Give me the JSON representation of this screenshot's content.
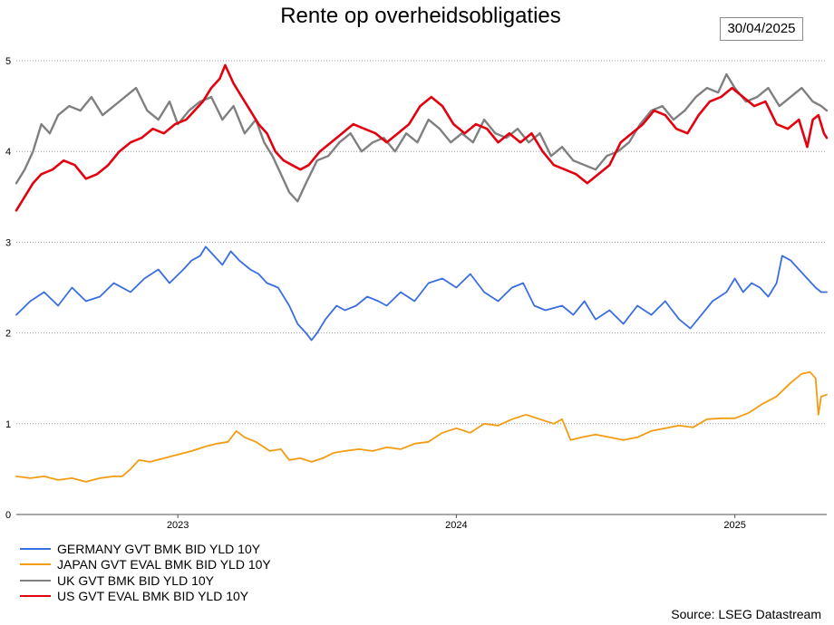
{
  "chart_data": {
    "type": "line",
    "title": "Rente op overheidsobligaties",
    "date_label": "30/04/2025",
    "source": "Source: LSEG Datastream",
    "xlabel": "",
    "ylabel": "",
    "xlim": [
      2022.42,
      2025.33
    ],
    "ylim": [
      0,
      5
    ],
    "yticks": [
      "0",
      "1",
      "2",
      "3",
      "4",
      "5"
    ],
    "xticks": [
      {
        "label": "2023",
        "value": 2023.0
      },
      {
        "label": "2024",
        "value": 2024.0
      },
      {
        "label": "2025",
        "value": 2025.0
      }
    ],
    "grid": "horizontal dotted",
    "legend_position": "bottom-left",
    "series": [
      {
        "name": "GERMANY GVT BMK BID YLD 10Y",
        "color": "#3a6ee0",
        "points": [
          [
            2022.42,
            2.2
          ],
          [
            2022.47,
            2.35
          ],
          [
            2022.52,
            2.45
          ],
          [
            2022.57,
            2.3
          ],
          [
            2022.62,
            2.5
          ],
          [
            2022.67,
            2.35
          ],
          [
            2022.72,
            2.4
          ],
          [
            2022.77,
            2.55
          ],
          [
            2022.83,
            2.45
          ],
          [
            2022.88,
            2.6
          ],
          [
            2022.93,
            2.7
          ],
          [
            2022.97,
            2.55
          ],
          [
            2023.02,
            2.7
          ],
          [
            2023.05,
            2.8
          ],
          [
            2023.08,
            2.85
          ],
          [
            2023.1,
            2.95
          ],
          [
            2023.13,
            2.85
          ],
          [
            2023.16,
            2.75
          ],
          [
            2023.19,
            2.9
          ],
          [
            2023.22,
            2.8
          ],
          [
            2023.26,
            2.7
          ],
          [
            2023.29,
            2.65
          ],
          [
            2023.32,
            2.55
          ],
          [
            2023.36,
            2.5
          ],
          [
            2023.4,
            2.3
          ],
          [
            2023.43,
            2.1
          ],
          [
            2023.46,
            2.0
          ],
          [
            2023.48,
            1.92
          ],
          [
            2023.5,
            2.0
          ],
          [
            2023.53,
            2.15
          ],
          [
            2023.57,
            2.3
          ],
          [
            2023.6,
            2.25
          ],
          [
            2023.64,
            2.3
          ],
          [
            2023.68,
            2.4
          ],
          [
            2023.72,
            2.35
          ],
          [
            2023.75,
            2.3
          ],
          [
            2023.8,
            2.45
          ],
          [
            2023.85,
            2.35
          ],
          [
            2023.9,
            2.55
          ],
          [
            2023.95,
            2.6
          ],
          [
            2024.0,
            2.5
          ],
          [
            2024.05,
            2.65
          ],
          [
            2024.1,
            2.45
          ],
          [
            2024.15,
            2.35
          ],
          [
            2024.2,
            2.5
          ],
          [
            2024.24,
            2.55
          ],
          [
            2024.28,
            2.3
          ],
          [
            2024.32,
            2.25
          ],
          [
            2024.38,
            2.3
          ],
          [
            2024.42,
            2.2
          ],
          [
            2024.46,
            2.35
          ],
          [
            2024.5,
            2.15
          ],
          [
            2024.55,
            2.25
          ],
          [
            2024.6,
            2.1
          ],
          [
            2024.65,
            2.3
          ],
          [
            2024.7,
            2.2
          ],
          [
            2024.75,
            2.35
          ],
          [
            2024.8,
            2.15
          ],
          [
            2024.84,
            2.05
          ],
          [
            2024.88,
            2.2
          ],
          [
            2024.92,
            2.35
          ],
          [
            2024.97,
            2.45
          ],
          [
            2025.0,
            2.6
          ],
          [
            2025.03,
            2.45
          ],
          [
            2025.06,
            2.55
          ],
          [
            2025.09,
            2.5
          ],
          [
            2025.12,
            2.4
          ],
          [
            2025.15,
            2.55
          ],
          [
            2025.17,
            2.85
          ],
          [
            2025.2,
            2.8
          ],
          [
            2025.23,
            2.7
          ],
          [
            2025.26,
            2.6
          ],
          [
            2025.29,
            2.5
          ],
          [
            2025.31,
            2.45
          ],
          [
            2025.33,
            2.45
          ]
        ]
      },
      {
        "name": "JAPAN GVT EVAL BMK BID YLD 10Y",
        "color": "#f39c12",
        "points": [
          [
            2022.42,
            0.42
          ],
          [
            2022.47,
            0.4
          ],
          [
            2022.52,
            0.42
          ],
          [
            2022.57,
            0.38
          ],
          [
            2022.62,
            0.4
          ],
          [
            2022.67,
            0.36
          ],
          [
            2022.72,
            0.4
          ],
          [
            2022.77,
            0.42
          ],
          [
            2022.8,
            0.42
          ],
          [
            2022.83,
            0.5
          ],
          [
            2022.86,
            0.6
          ],
          [
            2022.9,
            0.58
          ],
          [
            2022.95,
            0.62
          ],
          [
            2023.0,
            0.66
          ],
          [
            2023.05,
            0.7
          ],
          [
            2023.1,
            0.75
          ],
          [
            2023.14,
            0.78
          ],
          [
            2023.18,
            0.8
          ],
          [
            2023.21,
            0.92
          ],
          [
            2023.24,
            0.85
          ],
          [
            2023.28,
            0.8
          ],
          [
            2023.33,
            0.7
          ],
          [
            2023.37,
            0.72
          ],
          [
            2023.4,
            0.6
          ],
          [
            2023.44,
            0.62
          ],
          [
            2023.48,
            0.58
          ],
          [
            2023.52,
            0.62
          ],
          [
            2023.56,
            0.68
          ],
          [
            2023.6,
            0.7
          ],
          [
            2023.65,
            0.72
          ],
          [
            2023.7,
            0.7
          ],
          [
            2023.75,
            0.74
          ],
          [
            2023.8,
            0.72
          ],
          [
            2023.85,
            0.78
          ],
          [
            2023.9,
            0.8
          ],
          [
            2023.95,
            0.9
          ],
          [
            2024.0,
            0.95
          ],
          [
            2024.05,
            0.9
          ],
          [
            2024.1,
            1.0
          ],
          [
            2024.15,
            0.98
          ],
          [
            2024.2,
            1.05
          ],
          [
            2024.25,
            1.1
          ],
          [
            2024.3,
            1.05
          ],
          [
            2024.35,
            1.0
          ],
          [
            2024.38,
            1.05
          ],
          [
            2024.41,
            0.82
          ],
          [
            2024.45,
            0.85
          ],
          [
            2024.5,
            0.88
          ],
          [
            2024.55,
            0.85
          ],
          [
            2024.6,
            0.82
          ],
          [
            2024.65,
            0.85
          ],
          [
            2024.7,
            0.92
          ],
          [
            2024.75,
            0.95
          ],
          [
            2024.8,
            0.98
          ],
          [
            2024.85,
            0.96
          ],
          [
            2024.9,
            1.05
          ],
          [
            2024.95,
            1.06
          ],
          [
            2025.0,
            1.06
          ],
          [
            2025.05,
            1.12
          ],
          [
            2025.1,
            1.22
          ],
          [
            2025.15,
            1.3
          ],
          [
            2025.2,
            1.45
          ],
          [
            2025.24,
            1.55
          ],
          [
            2025.27,
            1.57
          ],
          [
            2025.29,
            1.5
          ],
          [
            2025.3,
            1.1
          ],
          [
            2025.31,
            1.3
          ],
          [
            2025.33,
            1.32
          ]
        ]
      },
      {
        "name": "UK GVT BMK BID YLD 10Y",
        "color": "#808080",
        "points": [
          [
            2022.42,
            3.65
          ],
          [
            2022.45,
            3.8
          ],
          [
            2022.48,
            4.0
          ],
          [
            2022.51,
            4.3
          ],
          [
            2022.54,
            4.2
          ],
          [
            2022.57,
            4.4
          ],
          [
            2022.61,
            4.5
          ],
          [
            2022.65,
            4.45
          ],
          [
            2022.69,
            4.6
          ],
          [
            2022.73,
            4.4
          ],
          [
            2022.77,
            4.5
          ],
          [
            2022.81,
            4.6
          ],
          [
            2022.85,
            4.7
          ],
          [
            2022.89,
            4.45
          ],
          [
            2022.93,
            4.35
          ],
          [
            2022.97,
            4.55
          ],
          [
            2023.0,
            4.3
          ],
          [
            2023.04,
            4.45
          ],
          [
            2023.08,
            4.55
          ],
          [
            2023.12,
            4.6
          ],
          [
            2023.16,
            4.35
          ],
          [
            2023.2,
            4.5
          ],
          [
            2023.24,
            4.2
          ],
          [
            2023.28,
            4.35
          ],
          [
            2023.31,
            4.1
          ],
          [
            2023.34,
            3.95
          ],
          [
            2023.37,
            3.75
          ],
          [
            2023.4,
            3.55
          ],
          [
            2023.43,
            3.45
          ],
          [
            2023.46,
            3.65
          ],
          [
            2023.5,
            3.9
          ],
          [
            2023.54,
            3.95
          ],
          [
            2023.58,
            4.1
          ],
          [
            2023.62,
            4.2
          ],
          [
            2023.66,
            4.0
          ],
          [
            2023.7,
            4.1
          ],
          [
            2023.74,
            4.15
          ],
          [
            2023.78,
            4.0
          ],
          [
            2023.82,
            4.2
          ],
          [
            2023.86,
            4.1
          ],
          [
            2023.9,
            4.35
          ],
          [
            2023.94,
            4.25
          ],
          [
            2023.98,
            4.1
          ],
          [
            2024.02,
            4.2
          ],
          [
            2024.06,
            4.1
          ],
          [
            2024.1,
            4.35
          ],
          [
            2024.14,
            4.2
          ],
          [
            2024.18,
            4.15
          ],
          [
            2024.22,
            4.25
          ],
          [
            2024.26,
            4.1
          ],
          [
            2024.3,
            4.2
          ],
          [
            2024.34,
            3.95
          ],
          [
            2024.38,
            4.05
          ],
          [
            2024.42,
            3.9
          ],
          [
            2024.46,
            3.85
          ],
          [
            2024.5,
            3.8
          ],
          [
            2024.54,
            3.95
          ],
          [
            2024.58,
            4.0
          ],
          [
            2024.62,
            4.1
          ],
          [
            2024.66,
            4.3
          ],
          [
            2024.7,
            4.45
          ],
          [
            2024.74,
            4.5
          ],
          [
            2024.78,
            4.35
          ],
          [
            2024.82,
            4.45
          ],
          [
            2024.86,
            4.6
          ],
          [
            2024.9,
            4.7
          ],
          [
            2024.94,
            4.65
          ],
          [
            2024.97,
            4.85
          ],
          [
            2025.0,
            4.7
          ],
          [
            2025.04,
            4.55
          ],
          [
            2025.08,
            4.6
          ],
          [
            2025.12,
            4.7
          ],
          [
            2025.16,
            4.5
          ],
          [
            2025.2,
            4.6
          ],
          [
            2025.24,
            4.7
          ],
          [
            2025.28,
            4.55
          ],
          [
            2025.31,
            4.5
          ],
          [
            2025.33,
            4.45
          ]
        ]
      },
      {
        "name": "US GVT EVAL BMK BID YLD 10Y",
        "color": "#e3000f",
        "points": [
          [
            2022.42,
            3.35
          ],
          [
            2022.45,
            3.5
          ],
          [
            2022.48,
            3.65
          ],
          [
            2022.51,
            3.75
          ],
          [
            2022.55,
            3.8
          ],
          [
            2022.59,
            3.9
          ],
          [
            2022.63,
            3.85
          ],
          [
            2022.67,
            3.7
          ],
          [
            2022.71,
            3.75
          ],
          [
            2022.75,
            3.85
          ],
          [
            2022.79,
            4.0
          ],
          [
            2022.83,
            4.1
          ],
          [
            2022.87,
            4.15
          ],
          [
            2022.91,
            4.25
          ],
          [
            2022.95,
            4.2
          ],
          [
            2022.99,
            4.3
          ],
          [
            2023.03,
            4.35
          ],
          [
            2023.06,
            4.45
          ],
          [
            2023.09,
            4.55
          ],
          [
            2023.12,
            4.7
          ],
          [
            2023.15,
            4.8
          ],
          [
            2023.17,
            4.95
          ],
          [
            2023.2,
            4.75
          ],
          [
            2023.23,
            4.6
          ],
          [
            2023.26,
            4.45
          ],
          [
            2023.29,
            4.3
          ],
          [
            2023.32,
            4.2
          ],
          [
            2023.35,
            4.0
          ],
          [
            2023.38,
            3.9
          ],
          [
            2023.41,
            3.85
          ],
          [
            2023.44,
            3.8
          ],
          [
            2023.47,
            3.85
          ],
          [
            2023.51,
            4.0
          ],
          [
            2023.55,
            4.1
          ],
          [
            2023.59,
            4.2
          ],
          [
            2023.63,
            4.3
          ],
          [
            2023.67,
            4.25
          ],
          [
            2023.71,
            4.2
          ],
          [
            2023.75,
            4.1
          ],
          [
            2023.79,
            4.2
          ],
          [
            2023.83,
            4.3
          ],
          [
            2023.87,
            4.5
          ],
          [
            2023.91,
            4.6
          ],
          [
            2023.95,
            4.5
          ],
          [
            2023.99,
            4.3
          ],
          [
            2024.03,
            4.2
          ],
          [
            2024.07,
            4.3
          ],
          [
            2024.11,
            4.25
          ],
          [
            2024.15,
            4.1
          ],
          [
            2024.19,
            4.2
          ],
          [
            2024.23,
            4.1
          ],
          [
            2024.27,
            4.2
          ],
          [
            2024.31,
            4.0
          ],
          [
            2024.35,
            3.85
          ],
          [
            2024.39,
            3.8
          ],
          [
            2024.43,
            3.75
          ],
          [
            2024.47,
            3.65
          ],
          [
            2024.51,
            3.75
          ],
          [
            2024.55,
            3.85
          ],
          [
            2024.59,
            4.1
          ],
          [
            2024.63,
            4.2
          ],
          [
            2024.67,
            4.3
          ],
          [
            2024.71,
            4.45
          ],
          [
            2024.75,
            4.4
          ],
          [
            2024.79,
            4.25
          ],
          [
            2024.83,
            4.2
          ],
          [
            2024.87,
            4.4
          ],
          [
            2024.91,
            4.55
          ],
          [
            2024.95,
            4.6
          ],
          [
            2024.99,
            4.7
          ],
          [
            2025.03,
            4.6
          ],
          [
            2025.07,
            4.5
          ],
          [
            2025.11,
            4.55
          ],
          [
            2025.15,
            4.3
          ],
          [
            2025.19,
            4.25
          ],
          [
            2025.23,
            4.35
          ],
          [
            2025.26,
            4.05
          ],
          [
            2025.28,
            4.35
          ],
          [
            2025.3,
            4.4
          ],
          [
            2025.32,
            4.2
          ],
          [
            2025.33,
            4.15
          ]
        ]
      }
    ]
  }
}
